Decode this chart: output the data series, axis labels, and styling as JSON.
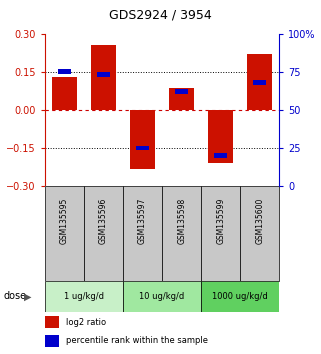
{
  "title": "GDS2924 / 3954",
  "samples": [
    "GSM135595",
    "GSM135596",
    "GSM135597",
    "GSM135598",
    "GSM135599",
    "GSM135600"
  ],
  "log2_ratios": [
    0.13,
    0.255,
    -0.235,
    0.085,
    -0.21,
    0.22
  ],
  "percentile_ranks": [
    75,
    73,
    25,
    62,
    20,
    68
  ],
  "dose_groups": [
    {
      "label": "1 ug/kg/d",
      "start": 0,
      "end": 2,
      "color": "#c8f0c8"
    },
    {
      "label": "10 ug/kg/d",
      "start": 2,
      "end": 4,
      "color": "#a0e8a0"
    },
    {
      "label": "1000 ug/kg/d",
      "start": 4,
      "end": 6,
      "color": "#60d060"
    }
  ],
  "ylim_left": [
    -0.3,
    0.3
  ],
  "ylim_right": [
    0,
    100
  ],
  "left_ticks": [
    -0.3,
    -0.15,
    0,
    0.15,
    0.3
  ],
  "right_ticks": [
    0,
    25,
    50,
    75,
    100
  ],
  "right_tick_labels": [
    "0",
    "25",
    "50",
    "75",
    "100%"
  ],
  "bar_width": 0.65,
  "red_color": "#cc1100",
  "blue_color": "#0000cc",
  "left_axis_color": "#cc1100",
  "right_axis_color": "#0000cc",
  "legend_red": "log2 ratio",
  "legend_blue": "percentile rank within the sample",
  "dose_label": "dose",
  "sample_bg_color": "#c8c8c8",
  "zero_line_color": "#cc0000",
  "dotted_line_color": "#000000"
}
